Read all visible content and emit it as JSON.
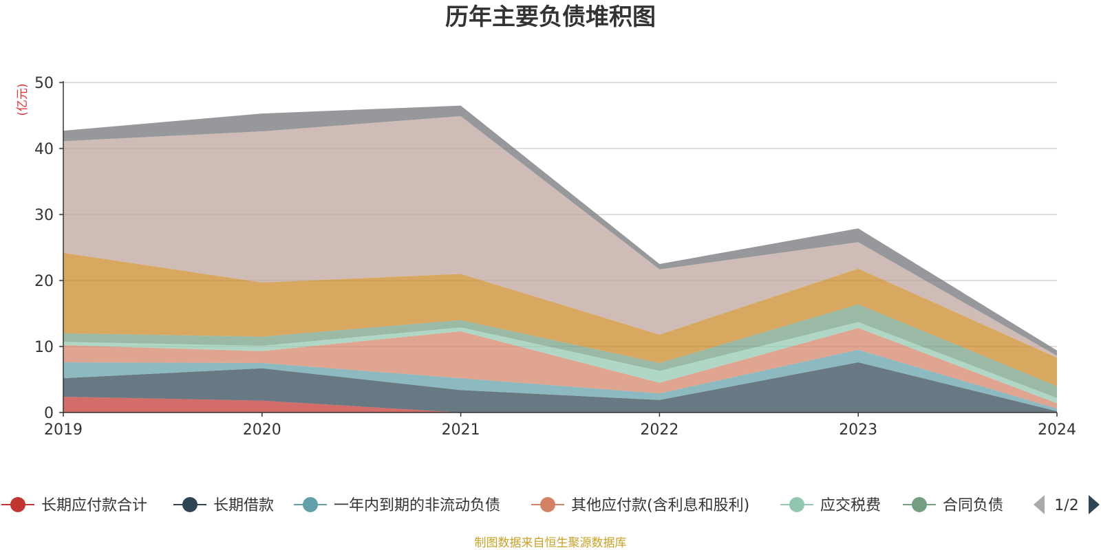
{
  "chart_data": {
    "type": "area",
    "stacked": true,
    "title": "历年主要负债堆积图",
    "unit_label": "(亿元)",
    "x": [
      "2019",
      "2020",
      "2021",
      "2022",
      "2023",
      "2024"
    ],
    "ylim": [
      0,
      50
    ],
    "yticks": [
      0,
      10,
      20,
      30,
      40,
      50
    ],
    "grid": true,
    "legend_position": "bottom",
    "series": [
      {
        "name": "长期应付款合计",
        "color": "#c23531",
        "values": [
          2.4,
          1.8,
          0.0,
          0.0,
          0.0,
          0.0
        ]
      },
      {
        "name": "长期借款",
        "color": "#2f4554",
        "values": [
          2.8,
          4.9,
          3.4,
          1.9,
          7.6,
          0.2
        ]
      },
      {
        "name": "一年内到期的非流动负债",
        "color": "#61a0a8",
        "values": [
          2.4,
          0.8,
          1.8,
          1.0,
          1.9,
          0.4
        ]
      },
      {
        "name": "其他应付款(含利息和股利)",
        "color": "#d48265",
        "values": [
          2.6,
          1.8,
          7.1,
          1.6,
          3.3,
          0.8
        ]
      },
      {
        "name": "应交税费",
        "color": "#91c7ae",
        "values": [
          0.5,
          0.8,
          0.6,
          1.8,
          0.9,
          0.8
        ]
      },
      {
        "name": "合同负债",
        "color": "#749f83",
        "values": [
          1.3,
          1.4,
          1.1,
          1.2,
          2.7,
          1.8
        ]
      },
      {
        "name": "",
        "color": "#ca8622",
        "values": [
          12.2,
          8.2,
          7.0,
          4.3,
          5.4,
          4.3
        ]
      },
      {
        "name": "",
        "color": "#bda29a",
        "values": [
          16.9,
          22.9,
          23.9,
          9.9,
          4.0,
          0.3
        ]
      },
      {
        "name": "",
        "color": "#6e7074",
        "values": [
          1.6,
          2.7,
          1.6,
          0.8,
          2.1,
          0.8
        ]
      }
    ]
  },
  "legend": {
    "items": [
      "长期应付款合计",
      "长期借款",
      "一年内到期的非流动负债",
      "其他应付款(含利息和股利)",
      "应交税费",
      "合同负债"
    ],
    "page": "1/2"
  },
  "footer": {
    "source": "制图数据来自恒生聚源数据库"
  }
}
